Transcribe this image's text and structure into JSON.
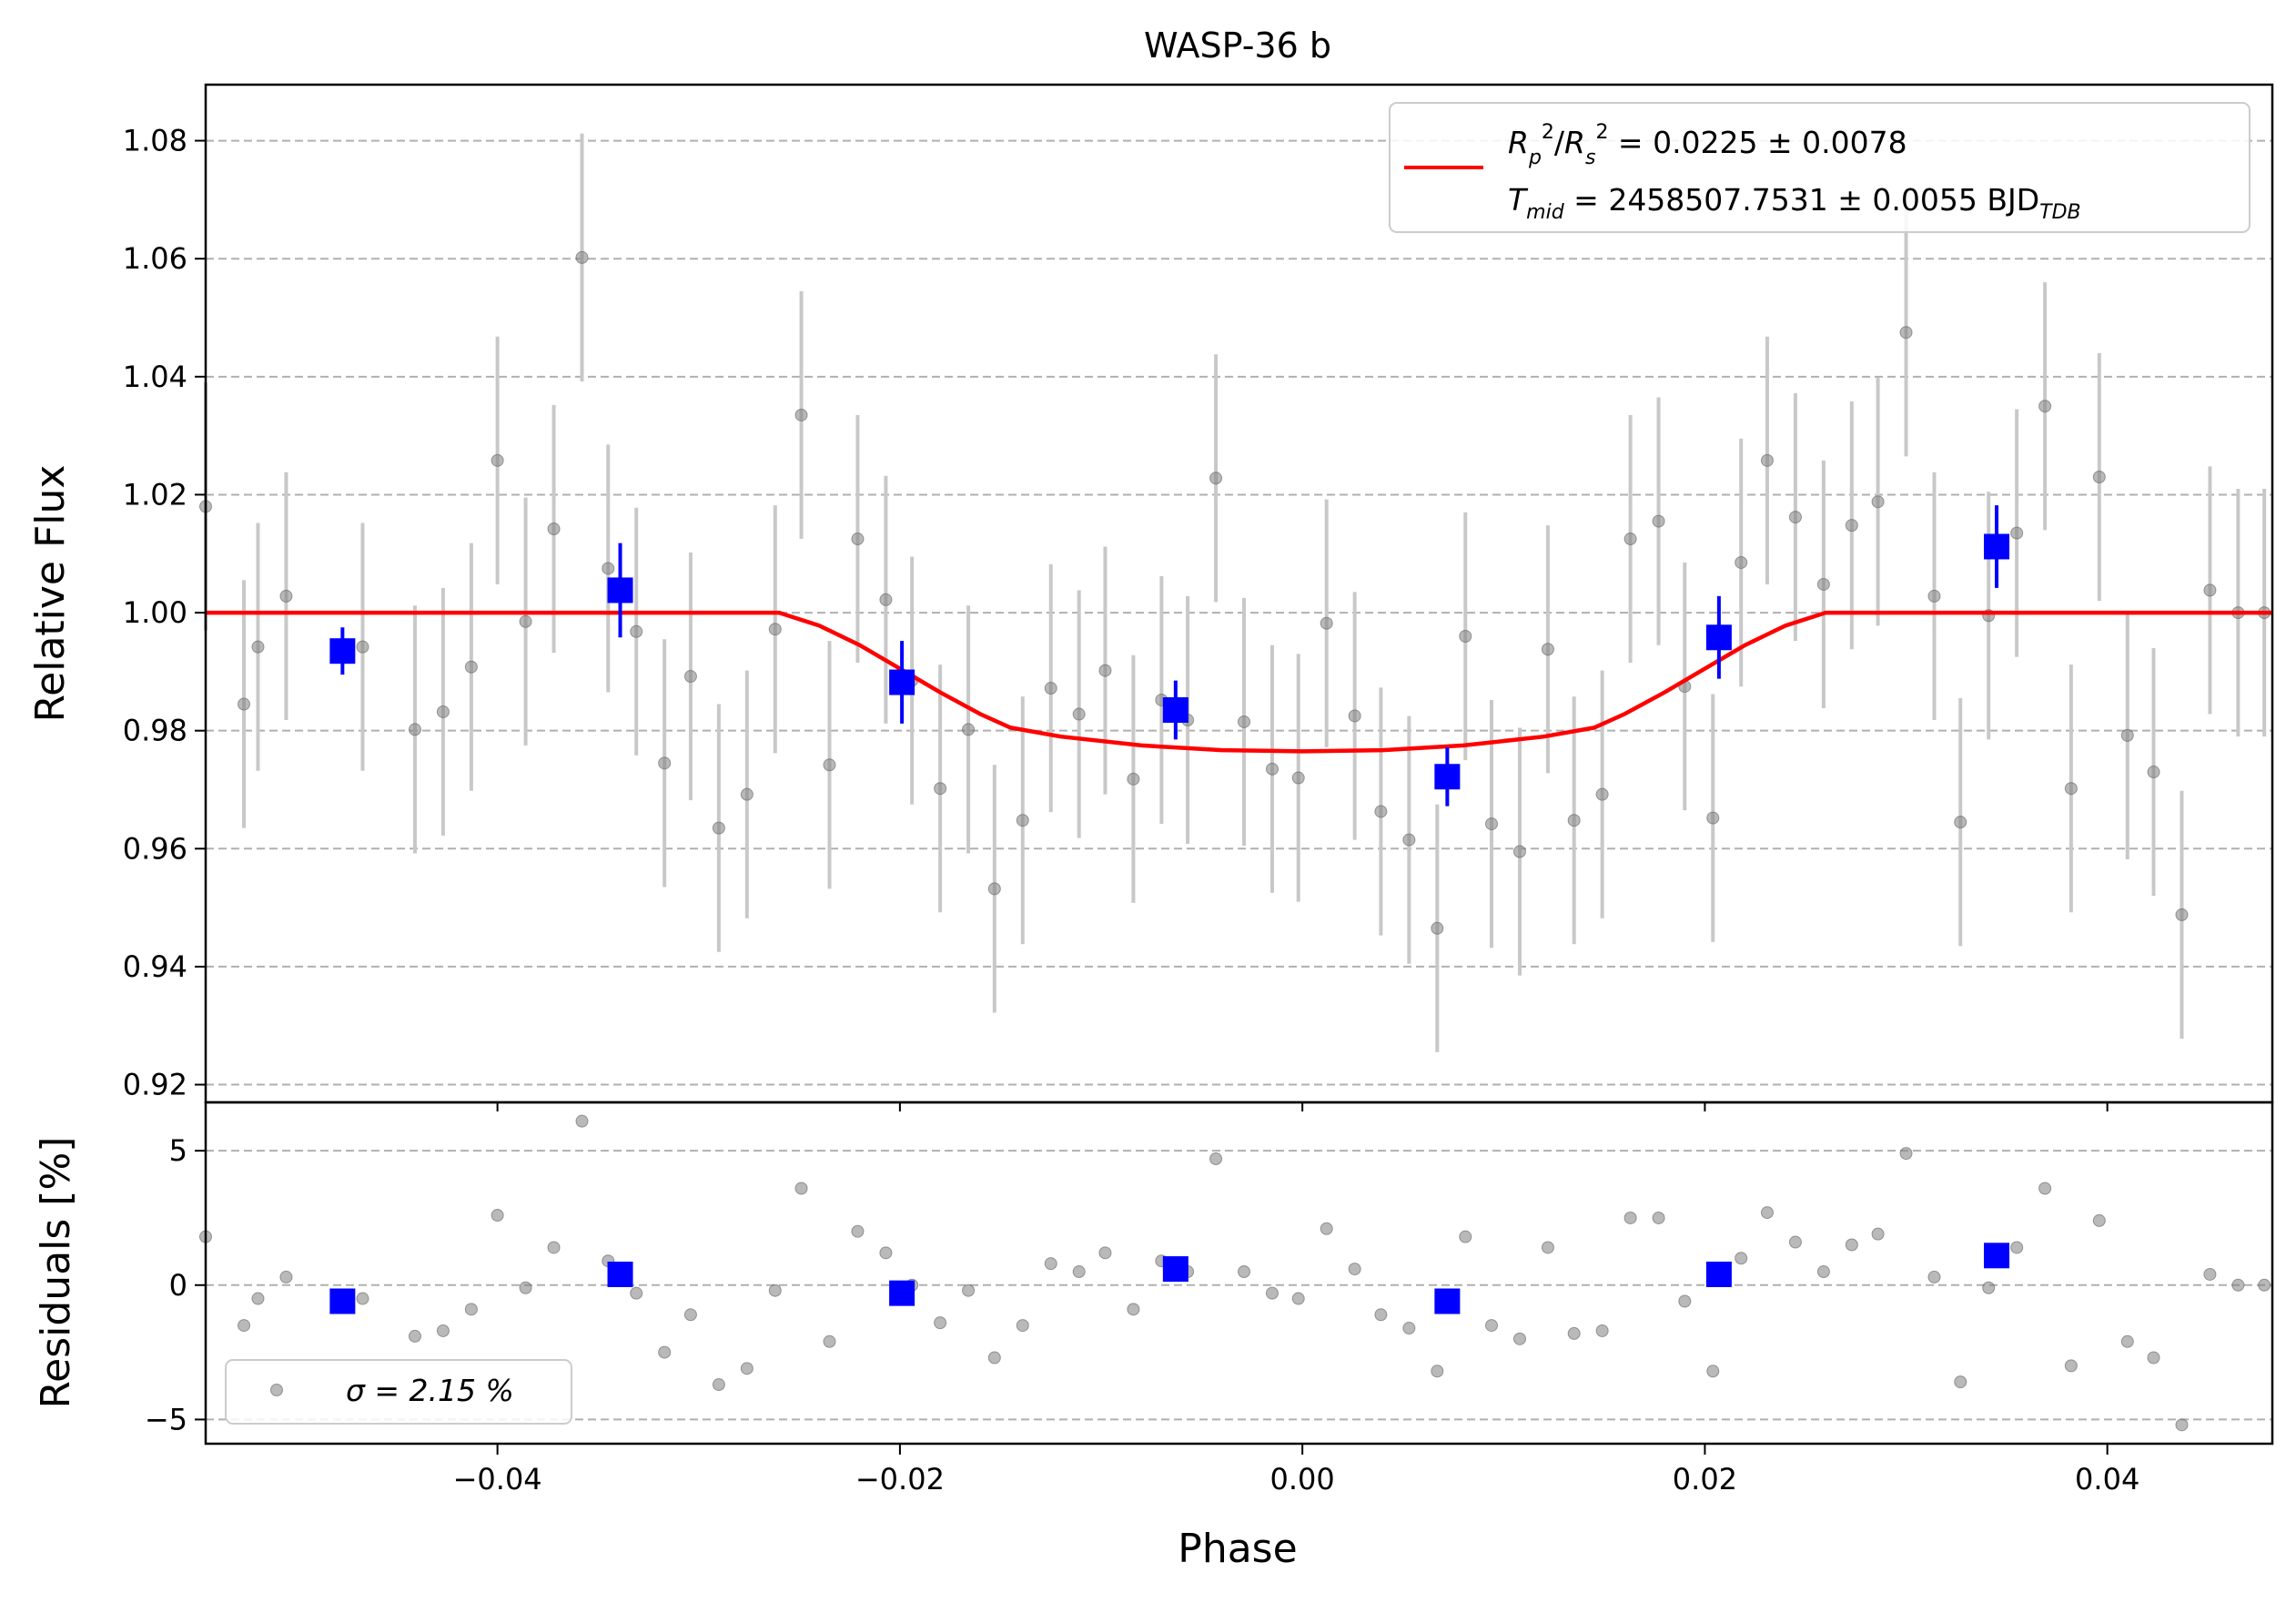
{
  "title": "WASP-36 b",
  "colors": {
    "raw_points": "#808080",
    "raw_errorbars": "#c8c8c8",
    "binned": "#0000ff",
    "model": "#ff0000",
    "grid": "#b0b0b0"
  },
  "legend": {
    "model_line1": "R_p^2/R_s^2 = 0.0225 ± 0.0078",
    "model_line2": "T_mid = 2458507.7531 ± 0.0055 BJD_TDB",
    "residual_label": "σ = 2.15 %"
  },
  "chart_data": [
    {
      "type": "scatter",
      "panel": "top",
      "title": "WASP-36 b",
      "xlabel": "",
      "ylabel": "Relative Flux",
      "xlim": [
        -0.0545,
        0.0482
      ],
      "ylim": [
        0.917,
        1.0895
      ],
      "yticks": [
        "0.92",
        "0.94",
        "0.96",
        "0.98",
        "1.00",
        "1.02",
        "1.04",
        "1.06",
        "1.08"
      ],
      "grid": "horizontal dashed",
      "legend_position": "top-right",
      "series": [
        {
          "x": [
            -0.0545,
            -0.0526,
            -0.0519,
            -0.0505,
            -0.0467,
            -0.0441,
            -0.0427,
            -0.0413,
            -0.04,
            -0.0386,
            -0.0372,
            -0.0358,
            -0.0345,
            -0.0331,
            -0.0317,
            -0.0304,
            -0.029,
            -0.0276,
            -0.0262,
            -0.0249,
            -0.0235,
            -0.0221,
            -0.0207,
            -0.0194,
            -0.018,
            -0.0166,
            -0.0153,
            -0.0139,
            -0.0125,
            -0.0111,
            -0.0098,
            -0.0084,
            -0.007,
            -0.0057,
            -0.0043,
            -0.0029,
            -0.0015,
            -0.0002,
            0.0012,
            0.0026,
            0.0039,
            0.0053,
            0.0067,
            0.0081,
            0.0094,
            0.0108,
            0.0122,
            0.0135,
            0.0149,
            0.0163,
            0.0177,
            0.019,
            0.0204,
            0.0218,
            0.0231,
            0.0245,
            0.0259,
            0.0273,
            0.0286,
            0.03,
            0.0314,
            0.0327,
            0.0341,
            0.0355,
            0.0369,
            0.0382,
            0.0396,
            0.041,
            0.0423,
            0.0437,
            0.0451,
            0.0465,
            0.0478
          ],
          "y": [
            1.018,
            0.9845,
            0.9942,
            1.0028,
            0.9942,
            0.9802,
            0.9832,
            0.9908,
            1.0258,
            0.9985,
            1.0142,
            1.0602,
            1.0075,
            0.9968,
            0.9745,
            0.9892,
            0.9635,
            0.9692,
            0.9972,
            1.0335,
            0.9742,
            1.0125,
            1.0022,
            0.9885,
            0.9702,
            0.9802,
            0.9532,
            0.9648,
            0.9872,
            0.9828,
            0.9902,
            0.9718,
            0.9852,
            0.9818,
            1.0228,
            0.9815,
            0.9735,
            0.972,
            0.9982,
            0.9825,
            0.9663,
            0.9615,
            0.9465,
            0.996,
            0.9642,
            0.9595,
            0.9938,
            0.9648,
            0.9692,
            1.0125,
            1.0155,
            0.9875,
            0.9652,
            1.0085,
            1.0258,
            1.0162,
            1.0048,
            1.0148,
            1.0188,
            1.0475,
            1.0028,
            0.9645,
            0.9995,
            1.0135,
            1.035,
            0.9702,
            1.023,
            0.9792,
            0.973,
            0.9488,
            1.0038,
            1.0,
            1.0
          ],
          "error": 0.021
        },
        {
          "x": [
            -0.0477,
            -0.0339,
            -0.0199,
            -0.0063,
            0.0072,
            0.0207,
            0.0345
          ],
          "y": [
            0.9935,
            1.0038,
            0.9882,
            0.9835,
            0.9722,
            0.9958,
            1.0112
          ],
          "error": [
            0.004,
            0.008,
            0.007,
            0.005,
            0.005,
            0.007,
            0.007
          ]
        },
        {
          "x": [
            -0.0545,
            -0.026,
            -0.024,
            -0.022,
            -0.02,
            -0.018,
            -0.016,
            -0.0145,
            -0.012,
            -0.008,
            -0.004,
            0.0,
            0.004,
            0.008,
            0.012,
            0.0145,
            0.016,
            0.018,
            0.02,
            0.022,
            0.024,
            0.026,
            0.0482
          ],
          "y": [
            1.0,
            1.0,
            0.9978,
            0.9945,
            0.9905,
            0.9865,
            0.9828,
            0.9805,
            0.979,
            0.9775,
            0.9767,
            0.9765,
            0.9767,
            0.9775,
            0.979,
            0.9805,
            0.9828,
            0.9865,
            0.9905,
            0.9945,
            0.9978,
            1.0,
            1.0
          ]
        }
      ]
    },
    {
      "type": "scatter",
      "panel": "bottom",
      "xlabel": "Phase",
      "ylabel": "Residuals [%]",
      "xlim": [
        -0.0545,
        0.0482
      ],
      "ylim": [
        -5.9,
        6.8
      ],
      "xticks": [
        "−0.04",
        "−0.02",
        "0.00",
        "0.02",
        "0.04"
      ],
      "yticks": [
        "−5",
        "0",
        "5"
      ],
      "grid": "horizontal dashed",
      "legend_position": "bottom-left",
      "series": [
        {
          "x": [
            -0.0545,
            -0.0526,
            -0.0519,
            -0.0505,
            -0.0467,
            -0.0441,
            -0.0427,
            -0.0413,
            -0.04,
            -0.0386,
            -0.0372,
            -0.0358,
            -0.0345,
            -0.0331,
            -0.0317,
            -0.0304,
            -0.029,
            -0.0276,
            -0.0262,
            -0.0249,
            -0.0235,
            -0.0221,
            -0.0207,
            -0.0194,
            -0.018,
            -0.0166,
            -0.0153,
            -0.0139,
            -0.0125,
            -0.0111,
            -0.0098,
            -0.0084,
            -0.007,
            -0.0057,
            -0.0043,
            -0.0029,
            -0.0015,
            -0.0002,
            0.0012,
            0.0026,
            0.0039,
            0.0053,
            0.0067,
            0.0081,
            0.0094,
            0.0108,
            0.0122,
            0.0135,
            0.0149,
            0.0163,
            0.0177,
            0.019,
            0.0204,
            0.0218,
            0.0231,
            0.0245,
            0.0259,
            0.0273,
            0.0286,
            0.03,
            0.0314,
            0.0327,
            0.0341,
            0.0355,
            0.0369,
            0.0382,
            0.0396,
            0.041,
            0.0423,
            0.0437,
            0.0451,
            0.0465,
            0.0478
          ],
          "y": [
            1.8,
            -1.5,
            -0.5,
            0.3,
            -0.5,
            -1.9,
            -1.7,
            -0.9,
            2.6,
            -0.1,
            1.4,
            6.1,
            0.9,
            -0.3,
            -2.5,
            -1.1,
            -3.7,
            -3.1,
            -0.2,
            3.6,
            -2.1,
            2.0,
            1.2,
            0.0,
            -1.4,
            -0.2,
            -2.7,
            -1.5,
            0.8,
            0.5,
            1.2,
            -0.9,
            0.9,
            0.5,
            4.7,
            0.5,
            -0.3,
            -0.5,
            2.1,
            0.6,
            -1.1,
            -1.6,
            -3.2,
            1.8,
            -1.5,
            -2.0,
            1.4,
            -1.8,
            -1.7,
            2.5,
            2.5,
            -0.6,
            -3.2,
            1.0,
            2.7,
            1.6,
            0.5,
            1.5,
            1.9,
            4.9,
            0.3,
            -3.6,
            -0.1,
            1.4,
            3.6,
            -3.0,
            2.4,
            -2.1,
            -2.7,
            -5.2,
            0.4,
            0.0,
            0.0
          ]
        },
        {
          "x": [
            -0.0477,
            -0.0339,
            -0.0199,
            -0.0063,
            0.0072,
            0.0207,
            0.0345
          ],
          "y": [
            -0.6,
            0.4,
            -0.3,
            0.6,
            -0.6,
            0.4,
            1.1
          ]
        }
      ]
    }
  ]
}
